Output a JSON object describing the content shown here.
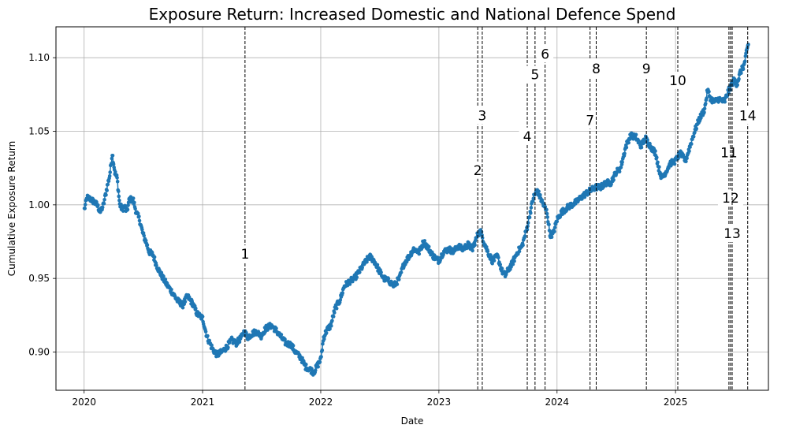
{
  "chart_data": {
    "type": "line",
    "title": "Exposure Return: Increased Domestic and National Defence Spend",
    "xlabel": "Date",
    "ylabel": "Cumulative Exposure Return",
    "xlim": [
      "2019-10-06",
      "2025-10-15"
    ],
    "ylim": [
      0.874,
      1.121
    ],
    "x_ticks": [
      {
        "date": "2020-01-01",
        "label": "2020"
      },
      {
        "date": "2021-01-01",
        "label": "2021"
      },
      {
        "date": "2022-01-01",
        "label": "2022"
      },
      {
        "date": "2023-01-01",
        "label": "2023"
      },
      {
        "date": "2024-01-01",
        "label": "2024"
      },
      {
        "date": "2025-01-01",
        "label": "2025"
      }
    ],
    "y_ticks": [
      {
        "value": 0.9,
        "label": "0.90"
      },
      {
        "value": 0.95,
        "label": "0.95"
      },
      {
        "value": 1.0,
        "label": "1.00"
      },
      {
        "value": 1.05,
        "label": "1.05"
      },
      {
        "value": 1.1,
        "label": "1.10"
      }
    ],
    "grid": true,
    "line_color": "#1f77b4",
    "event_color": "#000000",
    "series": [
      {
        "points": [
          [
            "2020-01-02",
            0.997
          ],
          [
            "2020-01-10",
            1.005
          ],
          [
            "2020-01-20",
            1.004
          ],
          [
            "2020-02-01",
            1.002
          ],
          [
            "2020-02-10",
            1.0
          ],
          [
            "2020-02-20",
            0.995
          ],
          [
            "2020-03-01",
            1.0
          ],
          [
            "2020-03-10",
            1.01
          ],
          [
            "2020-03-20",
            1.02
          ],
          [
            "2020-03-28",
            1.035
          ],
          [
            "2020-04-05",
            1.022
          ],
          [
            "2020-04-12",
            1.018
          ],
          [
            "2020-04-20",
            1.0
          ],
          [
            "2020-04-28",
            0.997
          ],
          [
            "2020-05-05",
            0.999
          ],
          [
            "2020-05-12",
            0.995
          ],
          [
            "2020-05-20",
            1.004
          ],
          [
            "2020-06-01",
            1.003
          ],
          [
            "2020-06-10",
            0.995
          ],
          [
            "2020-06-20",
            0.99
          ],
          [
            "2020-07-01",
            0.98
          ],
          [
            "2020-07-10",
            0.975
          ],
          [
            "2020-07-20",
            0.968
          ],
          [
            "2020-08-01",
            0.966
          ],
          [
            "2020-08-10",
            0.96
          ],
          [
            "2020-08-20",
            0.955
          ],
          [
            "2020-09-01",
            0.95
          ],
          [
            "2020-09-15",
            0.945
          ],
          [
            "2020-10-01",
            0.94
          ],
          [
            "2020-10-15",
            0.935
          ],
          [
            "2020-11-01",
            0.932
          ],
          [
            "2020-11-15",
            0.938
          ],
          [
            "2020-12-01",
            0.933
          ],
          [
            "2020-12-15",
            0.926
          ],
          [
            "2021-01-01",
            0.923
          ],
          [
            "2021-01-15",
            0.91
          ],
          [
            "2021-02-01",
            0.902
          ],
          [
            "2021-02-15",
            0.898
          ],
          [
            "2021-03-01",
            0.9
          ],
          [
            "2021-03-15",
            0.903
          ],
          [
            "2021-04-01",
            0.908
          ],
          [
            "2021-04-15",
            0.906
          ],
          [
            "2021-05-01",
            0.91
          ],
          [
            "2021-05-10",
            0.914
          ],
          [
            "2021-05-20",
            0.91
          ],
          [
            "2021-06-01",
            0.912
          ],
          [
            "2021-06-15",
            0.914
          ],
          [
            "2021-07-01",
            0.911
          ],
          [
            "2021-07-15",
            0.916
          ],
          [
            "2021-08-01",
            0.918
          ],
          [
            "2021-08-15",
            0.915
          ],
          [
            "2021-09-01",
            0.91
          ],
          [
            "2021-09-15",
            0.906
          ],
          [
            "2021-10-01",
            0.905
          ],
          [
            "2021-10-15",
            0.9
          ],
          [
            "2021-11-01",
            0.896
          ],
          [
            "2021-11-15",
            0.89
          ],
          [
            "2021-12-01",
            0.888
          ],
          [
            "2021-12-10",
            0.886
          ],
          [
            "2021-12-20",
            0.89
          ],
          [
            "2022-01-01",
            0.895
          ],
          [
            "2022-01-10",
            0.91
          ],
          [
            "2022-01-20",
            0.915
          ],
          [
            "2022-02-01",
            0.918
          ],
          [
            "2022-02-15",
            0.93
          ],
          [
            "2022-03-01",
            0.935
          ],
          [
            "2022-03-15",
            0.945
          ],
          [
            "2022-04-01",
            0.948
          ],
          [
            "2022-04-15",
            0.95
          ],
          [
            "2022-05-01",
            0.955
          ],
          [
            "2022-05-15",
            0.96
          ],
          [
            "2022-06-01",
            0.965
          ],
          [
            "2022-06-15",
            0.962
          ],
          [
            "2022-07-01",
            0.955
          ],
          [
            "2022-07-15",
            0.95
          ],
          [
            "2022-08-01",
            0.948
          ],
          [
            "2022-08-15",
            0.945
          ],
          [
            "2022-09-01",
            0.95
          ],
          [
            "2022-09-15",
            0.96
          ],
          [
            "2022-10-01",
            0.965
          ],
          [
            "2022-10-15",
            0.97
          ],
          [
            "2022-11-01",
            0.968
          ],
          [
            "2022-11-15",
            0.975
          ],
          [
            "2022-12-01",
            0.97
          ],
          [
            "2022-12-15",
            0.965
          ],
          [
            "2023-01-01",
            0.962
          ],
          [
            "2023-01-15",
            0.968
          ],
          [
            "2023-02-01",
            0.97
          ],
          [
            "2023-02-15",
            0.968
          ],
          [
            "2023-03-01",
            0.972
          ],
          [
            "2023-03-15",
            0.97
          ],
          [
            "2023-04-01",
            0.973
          ],
          [
            "2023-04-15",
            0.97
          ],
          [
            "2023-05-01",
            0.98
          ],
          [
            "2023-05-10",
            0.982
          ],
          [
            "2023-05-20",
            0.975
          ],
          [
            "2023-06-01",
            0.968
          ],
          [
            "2023-06-15",
            0.962
          ],
          [
            "2023-07-01",
            0.965
          ],
          [
            "2023-07-15",
            0.955
          ],
          [
            "2023-07-25",
            0.952
          ],
          [
            "2023-08-01",
            0.955
          ],
          [
            "2023-08-15",
            0.96
          ],
          [
            "2023-09-01",
            0.968
          ],
          [
            "2023-09-15",
            0.972
          ],
          [
            "2023-10-01",
            0.985
          ],
          [
            "2023-10-10",
            0.995
          ],
          [
            "2023-10-20",
            1.005
          ],
          [
            "2023-11-01",
            1.01
          ],
          [
            "2023-11-10",
            1.005
          ],
          [
            "2023-11-20",
            1.0
          ],
          [
            "2023-12-01",
            0.995
          ],
          [
            "2023-12-10",
            0.98
          ],
          [
            "2023-12-20",
            0.98
          ],
          [
            "2024-01-01",
            0.99
          ],
          [
            "2024-01-15",
            0.995
          ],
          [
            "2024-02-01",
            0.998
          ],
          [
            "2024-02-15",
            1.0
          ],
          [
            "2024-03-01",
            1.002
          ],
          [
            "2024-03-15",
            1.005
          ],
          [
            "2024-04-01",
            1.008
          ],
          [
            "2024-04-15",
            1.01
          ],
          [
            "2024-05-01",
            1.012
          ],
          [
            "2024-05-15",
            1.012
          ],
          [
            "2024-06-01",
            1.015
          ],
          [
            "2024-06-15",
            1.015
          ],
          [
            "2024-07-01",
            1.022
          ],
          [
            "2024-07-15",
            1.025
          ],
          [
            "2024-08-01",
            1.04
          ],
          [
            "2024-08-15",
            1.047
          ],
          [
            "2024-09-01",
            1.046
          ],
          [
            "2024-09-15",
            1.04
          ],
          [
            "2024-10-01",
            1.045
          ],
          [
            "2024-10-15",
            1.04
          ],
          [
            "2024-11-01",
            1.035
          ],
          [
            "2024-11-10",
            1.025
          ],
          [
            "2024-11-20",
            1.018
          ],
          [
            "2024-12-01",
            1.022
          ],
          [
            "2024-12-15",
            1.028
          ],
          [
            "2025-01-01",
            1.03
          ],
          [
            "2025-01-15",
            1.035
          ],
          [
            "2025-02-01",
            1.03
          ],
          [
            "2025-02-15",
            1.04
          ],
          [
            "2025-03-01",
            1.05
          ],
          [
            "2025-03-15",
            1.058
          ],
          [
            "2025-04-01",
            1.065
          ],
          [
            "2025-04-10",
            1.078
          ],
          [
            "2025-04-20",
            1.072
          ],
          [
            "2025-05-01",
            1.07
          ],
          [
            "2025-05-15",
            1.072
          ],
          [
            "2025-06-01",
            1.07
          ],
          [
            "2025-06-15",
            1.078
          ],
          [
            "2025-07-01",
            1.085
          ],
          [
            "2025-07-10",
            1.082
          ],
          [
            "2025-07-20",
            1.09
          ],
          [
            "2025-08-01",
            1.095
          ],
          [
            "2025-08-08",
            1.103
          ],
          [
            "2025-08-14",
            1.109
          ]
        ]
      }
    ],
    "events": [
      {
        "label": "1",
        "date": "2021-05-12",
        "y": 0.965
      },
      {
        "label": "2",
        "date": "2023-05-01",
        "y": 1.022
      },
      {
        "label": "3",
        "date": "2023-05-15",
        "y": 1.059
      },
      {
        "label": "4",
        "date": "2023-10-01",
        "y": 1.045
      },
      {
        "label": "5",
        "date": "2023-10-25",
        "y": 1.087
      },
      {
        "label": "6",
        "date": "2023-11-25",
        "y": 1.101
      },
      {
        "label": "7",
        "date": "2024-04-12",
        "y": 1.056
      },
      {
        "label": "8",
        "date": "2024-05-01",
        "y": 1.091
      },
      {
        "label": "9",
        "date": "2024-10-03",
        "y": 1.091
      },
      {
        "label": "10",
        "date": "2025-01-08",
        "y": 1.083
      },
      {
        "label": "11",
        "date": "2025-06-15",
        "y": 1.034
      },
      {
        "label": "12",
        "date": "2025-06-20",
        "y": 1.003
      },
      {
        "label": "13",
        "date": "2025-06-25",
        "y": 0.979
      },
      {
        "label": "14",
        "date": "2025-08-12",
        "y": 1.059
      }
    ]
  }
}
